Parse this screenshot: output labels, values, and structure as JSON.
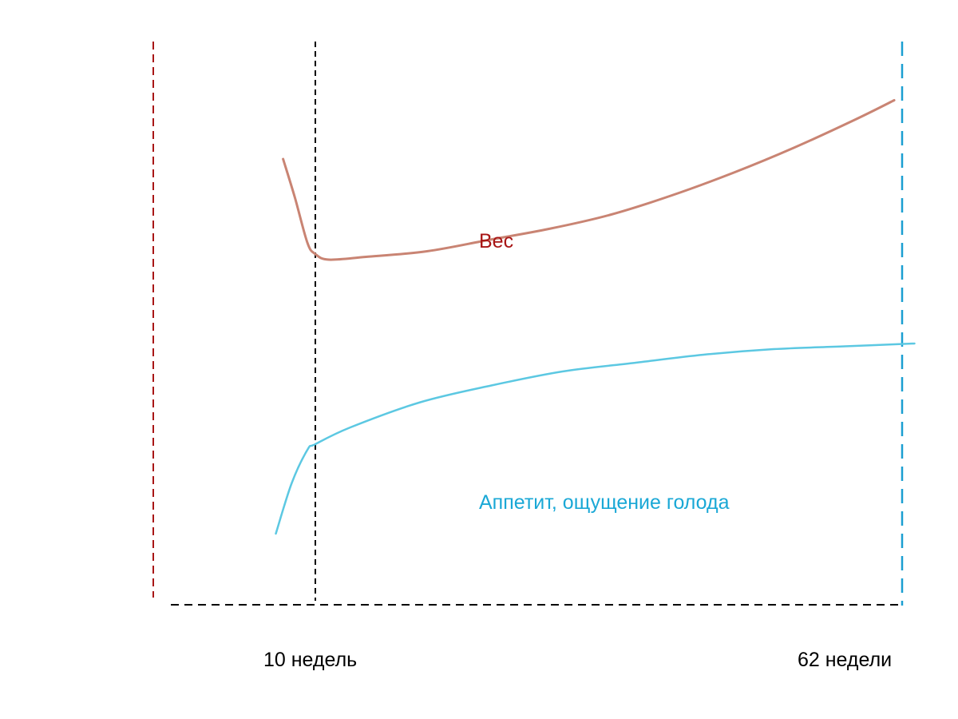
{
  "chart_data": {
    "type": "line",
    "x_unit": "weeks",
    "markers": [
      {
        "x": 10,
        "label": "10 недель",
        "color": "#000000"
      },
      {
        "x": 62,
        "label": "62 недели",
        "color": "#1a9fd1"
      }
    ],
    "start_line_color": "#a81616",
    "series": [
      {
        "name": "Вес",
        "color": "#a81616",
        "line_color": "#c98473",
        "points": [
          [
            7.14,
            0.79
          ],
          [
            8.2,
            0.72
          ],
          [
            9.3,
            0.64
          ],
          [
            10.0,
            0.62
          ],
          [
            11.2,
            0.61
          ],
          [
            14.5,
            0.615
          ],
          [
            19.9,
            0.625
          ],
          [
            25.3,
            0.645
          ],
          [
            30.7,
            0.665
          ],
          [
            36.1,
            0.69
          ],
          [
            41.6,
            0.725
          ],
          [
            47.0,
            0.765
          ],
          [
            52.4,
            0.81
          ],
          [
            57.8,
            0.86
          ],
          [
            61.3,
            0.895
          ]
        ]
      },
      {
        "name": "Аппетит, ощущение голода",
        "color": "#1aa8d6",
        "line_color": "#5cc8e2",
        "points": [
          [
            6.5,
            0.12
          ],
          [
            7.9,
            0.21
          ],
          [
            9.3,
            0.27
          ],
          [
            10.0,
            0.28
          ],
          [
            13.1,
            0.31
          ],
          [
            19.3,
            0.355
          ],
          [
            25.6,
            0.385
          ],
          [
            31.9,
            0.41
          ],
          [
            38.1,
            0.425
          ],
          [
            44.4,
            0.44
          ],
          [
            50.6,
            0.45
          ],
          [
            56.9,
            0.455
          ],
          [
            63.1,
            0.46
          ]
        ]
      }
    ]
  }
}
